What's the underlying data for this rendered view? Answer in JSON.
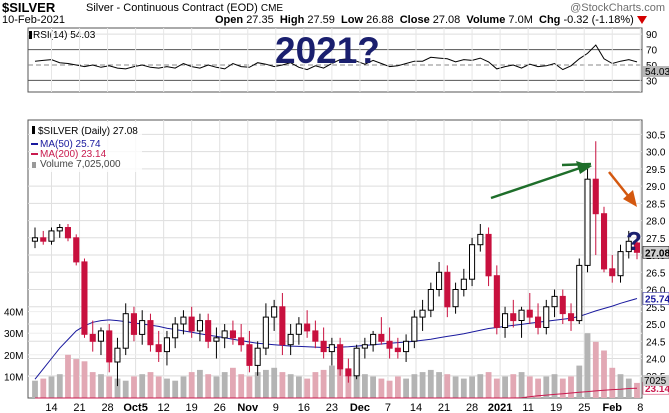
{
  "header": {
    "symbol": "$SILVER",
    "description": "Silver - Continuous Contract (EOD)",
    "exchange": "CME",
    "watermark": "@StockCharts.com",
    "date": "10-Feb-2021",
    "open_label": "Open",
    "open": "27.35",
    "high_label": "High",
    "high": "27.59",
    "low_label": "Low",
    "low": "26.88",
    "close_label": "Close",
    "close": "27.08",
    "volume_label": "Volume",
    "volume": "7.0M",
    "chg_label": "Chg",
    "chg": "-0.32",
    "chg_pct": "(-1.18%)",
    "chg_icon": "down-triangle-icon"
  },
  "annotations": {
    "year_text": "2021?",
    "question_mark": "?"
  },
  "chart_data": [
    {
      "type": "line",
      "title": "RSI(14) 54.03",
      "series": [
        {
          "name": "RSI(14)",
          "values": [
            55,
            56,
            57,
            53,
            52,
            50,
            48,
            50,
            47,
            49,
            46,
            45,
            48,
            50,
            47,
            46,
            48,
            46,
            52,
            48,
            46,
            50,
            47,
            45,
            52,
            48,
            47,
            53,
            51,
            48,
            50,
            53,
            47,
            44,
            49,
            46,
            52,
            57,
            58,
            55,
            51,
            56,
            52,
            48,
            49,
            52,
            55,
            55,
            60,
            59,
            58,
            54,
            57,
            56,
            59,
            54,
            45,
            48,
            50,
            46,
            51,
            48,
            49,
            52,
            44,
            49,
            58,
            65,
            76,
            58,
            52,
            55,
            57,
            54
          ]
        }
      ],
      "ylim": [
        15,
        98
      ],
      "tick_labels": [
        "90",
        "70",
        "50",
        "30"
      ],
      "value_label": "54.03",
      "colors": {
        "line": "#000000",
        "value_box": "#b8b8b8"
      }
    },
    {
      "type": "candlestick",
      "title": "$SILVER (Daily) 27.08",
      "legend": [
        "$SILVER (Daily) 27.08",
        "MA(50) 25.74",
        "MA(200) 23.14",
        "Volume 7,025,000"
      ],
      "ylim": [
        23.0,
        30.8
      ],
      "price_ticks": [
        "30.5",
        "30.0",
        "29.5",
        "29.0",
        "28.5",
        "28.0",
        "27.5",
        "27.0",
        "26.5",
        "26.0",
        "25.5",
        "25.0",
        "24.5",
        "24.0",
        "23.5"
      ],
      "value_labels": [
        {
          "text": "27.08",
          "value": 27.08,
          "color": "#000000"
        },
        {
          "text": "25.74",
          "value": 25.74,
          "color": "#1a1a9e"
        },
        {
          "text": "23.14",
          "value": 23.14,
          "color": "#c81a4e"
        }
      ],
      "ma200_label": "MA(200) 23.14",
      "volume_label": "Volume 7,025,000",
      "volume_ticks": [
        "40M",
        "30M",
        "20M",
        "10M"
      ],
      "volume_ylim": [
        0,
        50
      ],
      "volume_value_label": "7025",
      "x_tick_labels": [
        "14",
        "21",
        "28",
        "Oct5",
        "12",
        "19",
        "26",
        "Nov",
        "9",
        "16",
        "23",
        "Dec",
        "7",
        "14",
        "21",
        "28",
        "2021",
        "11",
        "19",
        "25",
        "Feb",
        "8"
      ],
      "ohlc": [
        [
          27.4,
          27.8,
          27.2,
          27.5
        ],
        [
          27.5,
          27.7,
          27.3,
          27.4
        ],
        [
          27.4,
          27.8,
          27.3,
          27.7
        ],
        [
          27.7,
          27.9,
          27.5,
          27.8
        ],
        [
          27.8,
          27.9,
          27.4,
          27.5
        ],
        [
          27.5,
          27.6,
          26.7,
          26.8
        ],
        [
          26.8,
          26.9,
          24.6,
          24.7
        ],
        [
          24.7,
          25.1,
          24.2,
          24.5
        ],
        [
          24.5,
          24.9,
          24.1,
          24.8
        ],
        [
          24.8,
          25.0,
          23.6,
          23.9
        ],
        [
          23.9,
          24.6,
          23.2,
          24.3
        ],
        [
          24.3,
          25.6,
          24.1,
          25.3
        ],
        [
          25.3,
          25.5,
          24.5,
          24.7
        ],
        [
          24.7,
          25.4,
          24.4,
          25.1
        ],
        [
          25.1,
          25.3,
          24.2,
          24.4
        ],
        [
          24.4,
          24.8,
          23.9,
          24.2
        ],
        [
          24.2,
          24.8,
          23.8,
          24.6
        ],
        [
          24.6,
          25.2,
          24.3,
          25.0
        ],
        [
          25.0,
          25.4,
          24.7,
          25.2
        ],
        [
          25.2,
          25.5,
          24.6,
          24.8
        ],
        [
          24.8,
          25.3,
          24.5,
          25.1
        ],
        [
          25.1,
          25.3,
          24.3,
          24.5
        ],
        [
          24.5,
          24.9,
          24.0,
          24.6
        ],
        [
          24.6,
          25.0,
          24.3,
          24.8
        ],
        [
          24.8,
          25.1,
          24.4,
          24.6
        ],
        [
          24.6,
          25.0,
          24.2,
          24.4
        ],
        [
          24.4,
          24.8,
          23.6,
          23.8
        ],
        [
          23.8,
          24.5,
          23.5,
          24.3
        ],
        [
          24.3,
          25.6,
          24.1,
          25.2
        ],
        [
          25.2,
          25.7,
          24.8,
          25.5
        ],
        [
          25.5,
          25.9,
          24.1,
          24.4
        ],
        [
          24.4,
          25.0,
          24.1,
          24.7
        ],
        [
          24.7,
          25.2,
          24.4,
          25.0
        ],
        [
          25.0,
          25.4,
          24.6,
          24.8
        ],
        [
          24.8,
          25.1,
          24.3,
          24.5
        ],
        [
          24.5,
          24.9,
          24.0,
          24.2
        ],
        [
          24.2,
          24.6,
          23.8,
          24.4
        ],
        [
          24.4,
          24.6,
          23.5,
          23.7
        ],
        [
          23.7,
          24.0,
          23.3,
          23.5
        ],
        [
          23.5,
          24.4,
          23.4,
          24.3
        ],
        [
          24.3,
          24.6,
          24.0,
          24.4
        ],
        [
          24.4,
          24.8,
          24.2,
          24.7
        ],
        [
          24.7,
          25.2,
          24.4,
          24.5
        ],
        [
          24.5,
          24.9,
          24.0,
          24.3
        ],
        [
          24.3,
          24.6,
          24.0,
          24.2
        ],
        [
          24.2,
          24.7,
          23.9,
          24.5
        ],
        [
          24.5,
          25.4,
          24.3,
          25.2
        ],
        [
          25.2,
          25.7,
          24.8,
          25.4
        ],
        [
          25.4,
          26.2,
          25.2,
          26.0
        ],
        [
          26.0,
          26.8,
          25.8,
          26.5
        ],
        [
          26.5,
          26.7,
          25.2,
          25.5
        ],
        [
          25.5,
          26.2,
          25.3,
          26.0
        ],
        [
          26.0,
          26.6,
          25.8,
          26.3
        ],
        [
          26.3,
          27.5,
          26.1,
          27.3
        ],
        [
          27.3,
          27.9,
          27.1,
          27.6
        ],
        [
          27.6,
          27.8,
          26.1,
          26.4
        ],
        [
          26.4,
          26.7,
          24.7,
          24.9
        ],
        [
          24.9,
          25.5,
          24.6,
          25.3
        ],
        [
          25.3,
          25.7,
          24.9,
          25.1
        ],
        [
          25.1,
          25.5,
          24.6,
          25.4
        ],
        [
          25.4,
          25.9,
          25.0,
          25.2
        ],
        [
          25.2,
          25.6,
          24.7,
          24.9
        ],
        [
          24.9,
          25.7,
          24.7,
          25.5
        ],
        [
          25.5,
          26.0,
          25.2,
          25.8
        ],
        [
          25.8,
          26.0,
          25.0,
          25.3
        ],
        [
          25.3,
          25.6,
          24.8,
          25.1
        ],
        [
          25.1,
          26.9,
          25.0,
          26.7
        ],
        [
          26.7,
          29.5,
          26.5,
          29.2
        ],
        [
          29.2,
          30.3,
          27.0,
          28.2
        ],
        [
          28.2,
          28.4,
          26.5,
          26.6
        ],
        [
          26.6,
          27.0,
          26.2,
          26.4
        ],
        [
          26.4,
          27.3,
          26.2,
          27.1
        ],
        [
          27.1,
          27.7,
          26.9,
          27.4
        ],
        [
          27.35,
          27.59,
          26.88,
          27.08
        ]
      ],
      "volume": [
        8,
        9,
        10,
        11,
        20,
        18,
        17,
        12,
        11,
        10,
        9,
        8,
        10,
        11,
        12,
        10,
        9,
        8,
        10,
        12,
        13,
        11,
        10,
        12,
        14,
        11,
        10,
        12,
        13,
        14,
        12,
        11,
        10,
        9,
        12,
        13,
        15,
        14,
        13,
        12,
        11,
        10,
        9,
        8,
        10,
        9,
        11,
        12,
        13,
        12,
        11,
        10,
        9,
        10,
        11,
        12,
        9,
        10,
        11,
        12,
        10,
        9,
        10,
        11,
        9,
        10,
        15,
        30,
        26,
        22,
        14,
        11,
        9,
        7
      ],
      "ma50": [
        23.4,
        23.7,
        24.0,
        24.3,
        24.55,
        24.8,
        24.95,
        25.05,
        25.1,
        25.12,
        25.1,
        25.07,
        25.03,
        25.0,
        24.97,
        24.93,
        24.88,
        24.84,
        24.8,
        24.76,
        24.72,
        24.68,
        24.64,
        24.6,
        24.56,
        24.52,
        24.48,
        24.44,
        24.42,
        24.4,
        24.38,
        24.36,
        24.35,
        24.34,
        24.33,
        24.32,
        24.32,
        24.33,
        24.34,
        24.36,
        24.38,
        24.4,
        24.42,
        24.44,
        24.46,
        24.48,
        24.5,
        24.53,
        24.56,
        24.6,
        24.64,
        24.68,
        24.72,
        24.77,
        24.82,
        24.87,
        24.9,
        24.93,
        24.96,
        24.99,
        25.02,
        25.05,
        25.08,
        25.11,
        25.14,
        25.17,
        25.22,
        25.3,
        25.38,
        25.45,
        25.52,
        25.6,
        25.67,
        25.74
      ],
      "ma200": [
        12.2,
        12.6,
        13.0,
        13.4,
        13.9,
        14.3,
        14.7,
        15.1,
        15.5,
        15.9,
        16.3,
        16.7,
        17.0,
        17.4,
        17.7,
        18.0,
        18.3,
        18.6,
        18.9,
        19.2,
        19.4,
        19.6,
        19.8,
        20.0,
        20.2,
        20.35,
        20.5,
        20.65,
        20.8,
        20.92,
        21.04,
        21.15,
        21.26,
        21.36,
        21.46,
        21.55,
        21.64,
        21.72,
        21.8,
        21.88,
        21.95,
        22.02,
        22.09,
        22.15,
        22.21,
        22.27,
        22.33,
        22.38,
        22.43,
        22.48,
        22.53,
        22.57,
        22.61,
        22.65,
        22.69,
        22.73,
        22.77,
        22.8,
        22.83,
        22.86,
        22.89,
        22.92,
        22.94,
        22.96,
        22.98,
        23.0,
        23.02,
        23.04,
        23.06,
        23.08,
        23.1,
        23.11,
        23.13,
        23.14
      ],
      "colors": {
        "up": "#000000",
        "down": "#c8103e",
        "ma50": "#1a1a9e",
        "ma200": "#c81a4e",
        "volume_up": "#b4b4b4",
        "volume_down": "#e2a8b4"
      }
    }
  ],
  "colors": {
    "arrow_up": "#1e6e2a",
    "arrow_down": "#d4580f",
    "annotation_text": "#1a1f6e",
    "grid": "#d8d8d8"
  }
}
